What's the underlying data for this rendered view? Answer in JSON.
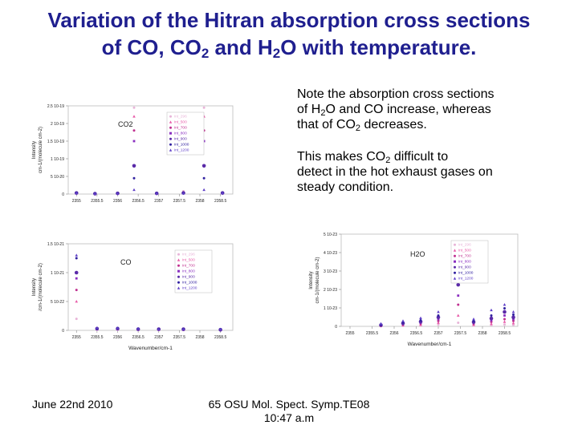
{
  "slide": {
    "title_line1": "Variation of the Hitran absorption cross sections",
    "title_line2_a": "of CO, CO",
    "title_line2_sub1": "2",
    "title_line2_b": " and H",
    "title_line2_sub2": "2",
    "title_line2_c": "O with temperature.",
    "note1": {
      "l1": "Note the absorption cross sections",
      "l2a": "of H",
      "l2sub": "2",
      "l2b": "O and CO increase, whereas",
      "l3a": "that of CO",
      "l3sub": "2",
      "l3b": " decreases."
    },
    "note2": {
      "l1a": "This makes CO",
      "l1sub": "2",
      "l1b": " difficult  to",
      "l2": "detect in the hot exhaust gases on",
      "l3": "steady condition."
    },
    "footer_left": "June 22nd 2010",
    "footer_center_l1": "65 OSU Mol. Spect. Symp.TE08",
    "footer_center_l2": "10:47 a.m"
  },
  "chart_data": [
    {
      "type": "scatter",
      "label": "CO2",
      "ylabel_l1": "Intensity",
      "ylabel_l2": "cm-1/(molecule cm-2)",
      "xlabel": "",
      "y_ticks": [
        "2.5 10-19",
        "2 10-19",
        "1.5 10-19",
        "1 10-19",
        "5 10-20",
        "0"
      ],
      "x_ticks": [
        "2355",
        "2355.5",
        "2356",
        "2356.5",
        "2357",
        "2357.5",
        "2358",
        "2358.5"
      ],
      "xlim": [
        2354.8,
        2358.8
      ],
      "ylim": [
        0,
        2.5e-19
      ],
      "legend": [
        "int_296",
        "int_500",
        "int_700",
        "int_800",
        "int_900",
        "int_1000",
        "int_1200"
      ],
      "colors": [
        "#e8b4d8",
        "#e85aa8",
        "#c03090",
        "#8a2fc0",
        "#5a2aa8",
        "#3020a0",
        "#6040c8"
      ],
      "peaks": [
        {
          "x": 2355.0,
          "values": [
            3e-21,
            3e-21,
            3e-21,
            3e-21,
            3e-21,
            3e-21,
            3e-21
          ]
        },
        {
          "x": 2355.45,
          "values": [
            1e-21,
            1e-21,
            1e-21,
            1e-21,
            1e-21,
            1e-21,
            1e-21
          ]
        },
        {
          "x": 2356.0,
          "values": [
            2e-21,
            2e-21,
            2e-21,
            2e-21,
            2e-21,
            2e-21,
            2e-21
          ]
        },
        {
          "x": 2356.4,
          "values": [
            2.45e-19,
            2.2e-19,
            1.8e-19,
            1.5e-19,
            8e-20,
            4.5e-20,
            1.2e-20
          ]
        },
        {
          "x": 2356.95,
          "values": [
            2e-21,
            2e-21,
            2e-21,
            2e-21,
            2e-21,
            2e-21,
            2e-21
          ]
        },
        {
          "x": 2357.6,
          "values": [
            8e-21,
            5e-21,
            4e-21,
            3e-21,
            3e-21,
            2e-21,
            2e-21
          ]
        },
        {
          "x": 2358.1,
          "values": [
            2.45e-19,
            2.2e-19,
            1.8e-19,
            1.5e-19,
            8e-20,
            4.5e-20,
            1.2e-20
          ]
        },
        {
          "x": 2358.55,
          "values": [
            3e-21,
            3e-21,
            3e-21,
            3e-21,
            3e-21,
            3e-21,
            3e-21
          ]
        }
      ]
    },
    {
      "type": "scatter",
      "label": "CO",
      "ylabel_l1": "Intensity",
      "ylabel_l2": "/cm-1/(molecule cm-2)",
      "xlabel": "Wavenumber/cm-1",
      "y_ticks": [
        "1.5 10-21",
        "1 10-21",
        "5 10-22",
        "0"
      ],
      "x_ticks": [
        "2355",
        "2355.5",
        "2356",
        "2356.5",
        "2357",
        "2357.5",
        "2358",
        "2358.5"
      ],
      "xlim": [
        2354.8,
        2358.8
      ],
      "ylim": [
        0,
        1.5e-21
      ],
      "legend": [
        "int_296",
        "int_500",
        "int_700",
        "int_800",
        "int_900",
        "int_1000",
        "int_1200"
      ],
      "colors": [
        "#e8b4d8",
        "#e85aa8",
        "#c03090",
        "#8a2fc0",
        "#5a2aa8",
        "#3020a0",
        "#6040c8"
      ],
      "peaks": [
        {
          "x": 2355.0,
          "values": [
            2e-22,
            5e-22,
            7e-22,
            9e-22,
            1e-21,
            1.25e-21,
            1.3e-21
          ]
        },
        {
          "x": 2355.5,
          "values": [
            1e-23,
            2e-23,
            2e-23,
            2e-23,
            3e-23,
            3e-23,
            4e-23
          ]
        },
        {
          "x": 2356.0,
          "values": [
            1e-23,
            2e-23,
            2e-23,
            3e-23,
            3e-23,
            4e-23,
            4e-23
          ]
        },
        {
          "x": 2356.5,
          "values": [
            1e-23,
            1e-23,
            2e-23,
            2e-23,
            2e-23,
            3e-23,
            3e-23
          ]
        },
        {
          "x": 2357.0,
          "values": [
            1e-23,
            1e-23,
            1e-23,
            2e-23,
            2e-23,
            2e-23,
            2e-23
          ]
        },
        {
          "x": 2357.6,
          "values": [
            1e-23,
            1e-23,
            1e-23,
            1e-23,
            2e-23,
            2e-23,
            2e-23
          ]
        },
        {
          "x": 2358.5,
          "values": [
            1e-23,
            1e-23,
            1e-23,
            1e-23,
            1e-23,
            2e-23,
            2e-23
          ]
        }
      ]
    },
    {
      "type": "scatter",
      "label": "H2O",
      "ylabel_l1": "Intensity",
      "ylabel_l2": "cm-1/(molecule cm-2)",
      "xlabel": "Wavenumber/cm-1",
      "y_ticks": [
        "5 10-23",
        "4 10-23",
        "3 10-23",
        "2 10-23",
        "1 10-23",
        "0"
      ],
      "x_ticks": [
        "2355",
        "2355.5",
        "2356",
        "2356.5",
        "2357",
        "2357.5",
        "2358",
        "2358.5"
      ],
      "xlim": [
        2354.8,
        2358.8
      ],
      "ylim": [
        0,
        5.1e-23
      ],
      "legend": [
        "int_296",
        "int_500",
        "int_700",
        "int_800",
        "int_900",
        "int_1000",
        "int_1200"
      ],
      "colors": [
        "#e8b4d8",
        "#e85aa8",
        "#c03090",
        "#8a2fc0",
        "#5a2aa8",
        "#3020a0",
        "#6040c8"
      ],
      "peaks": [
        {
          "x": 2355.7,
          "values": [
            1e-25,
            2e-25,
            4e-25,
            5e-25,
            7e-25,
            1e-24,
            1.5e-24
          ]
        },
        {
          "x": 2356.2,
          "values": [
            3e-25,
            6e-25,
            1e-24,
            1.3e-24,
            1.7e-24,
            2.2e-24,
            3e-24
          ]
        },
        {
          "x": 2356.6,
          "values": [
            4e-25,
            9e-25,
            1.5e-24,
            2e-24,
            2.6e-24,
            3.3e-24,
            4.6e-24
          ]
        },
        {
          "x": 2357.0,
          "values": [
            1e-24,
            2e-24,
            3e-24,
            4e-24,
            5e-24,
            6e-24,
            8e-24
          ]
        },
        {
          "x": 2357.45,
          "values": [
            2e-24,
            6e-24,
            1.2e-23,
            1.7e-23,
            2.3e-23,
            3.4e-23,
            4.2e-23
          ]
        },
        {
          "x": 2357.8,
          "values": [
            4e-25,
            9e-25,
            1.4e-24,
            1.9e-24,
            2.4e-24,
            3e-24,
            4e-24
          ]
        },
        {
          "x": 2358.2,
          "values": [
            6e-25,
            1.4e-24,
            2.5e-24,
            3.4e-24,
            4.4e-24,
            6e-24,
            9e-24
          ]
        },
        {
          "x": 2358.5,
          "values": [
            1e-24,
            2.5e-24,
            4e-24,
            6e-24,
            8e-24,
            1e-23,
            1.2e-23
          ]
        },
        {
          "x": 2358.7,
          "values": [
            8e-25,
            1.8e-24,
            3e-24,
            4e-24,
            5e-24,
            6.5e-24,
            8e-24
          ]
        }
      ]
    }
  ]
}
